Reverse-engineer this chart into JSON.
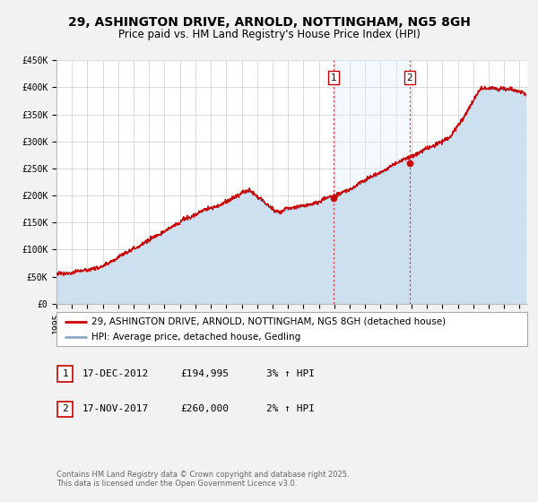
{
  "title": "29, ASHINGTON DRIVE, ARNOLD, NOTTINGHAM, NG5 8GH",
  "subtitle": "Price paid vs. HM Land Registry's House Price Index (HPI)",
  "background_color": "#f2f2f2",
  "plot_bg_color": "#ffffff",
  "grid_color": "#cccccc",
  "ylabel_values": [
    0,
    50000,
    100000,
    150000,
    200000,
    250000,
    300000,
    350000,
    400000,
    450000
  ],
  "ytick_labels": [
    "£0",
    "£50K",
    "£100K",
    "£150K",
    "£200K",
    "£250K",
    "£300K",
    "£350K",
    "£400K",
    "£450K"
  ],
  "ylim": [
    0,
    450000
  ],
  "xlim_start": 1995.0,
  "xlim_end": 2025.5,
  "xticks": [
    1995,
    1996,
    1997,
    1998,
    1999,
    2000,
    2001,
    2002,
    2003,
    2004,
    2005,
    2006,
    2007,
    2008,
    2009,
    2010,
    2011,
    2012,
    2013,
    2014,
    2015,
    2016,
    2017,
    2018,
    2019,
    2020,
    2021,
    2022,
    2023,
    2024,
    2025
  ],
  "red_line_color": "#cc0000",
  "blue_line_color": "#88aacc",
  "blue_fill_color": "#cce0f0",
  "span_fill_color": "#ddeeff",
  "vline_color": "#dd4444",
  "marker1_x": 2012.96,
  "marker1_y": 194995,
  "marker2_x": 2017.88,
  "marker2_y": 260000,
  "legend_label_red": "29, ASHINGTON DRIVE, ARNOLD, NOTTINGHAM, NG5 8GH (detached house)",
  "legend_label_blue": "HPI: Average price, detached house, Gedling",
  "table_row1": [
    "1",
    "17-DEC-2012",
    "£194,995",
    "3% ↑ HPI"
  ],
  "table_row2": [
    "2",
    "17-NOV-2017",
    "£260,000",
    "2% ↑ HPI"
  ],
  "footer": "Contains HM Land Registry data © Crown copyright and database right 2025.\nThis data is licensed under the Open Government Licence v3.0.",
  "title_fontsize": 10,
  "subtitle_fontsize": 8.5,
  "tick_fontsize": 7,
  "legend_fontsize": 7.5,
  "table_fontsize": 8,
  "footer_fontsize": 6
}
